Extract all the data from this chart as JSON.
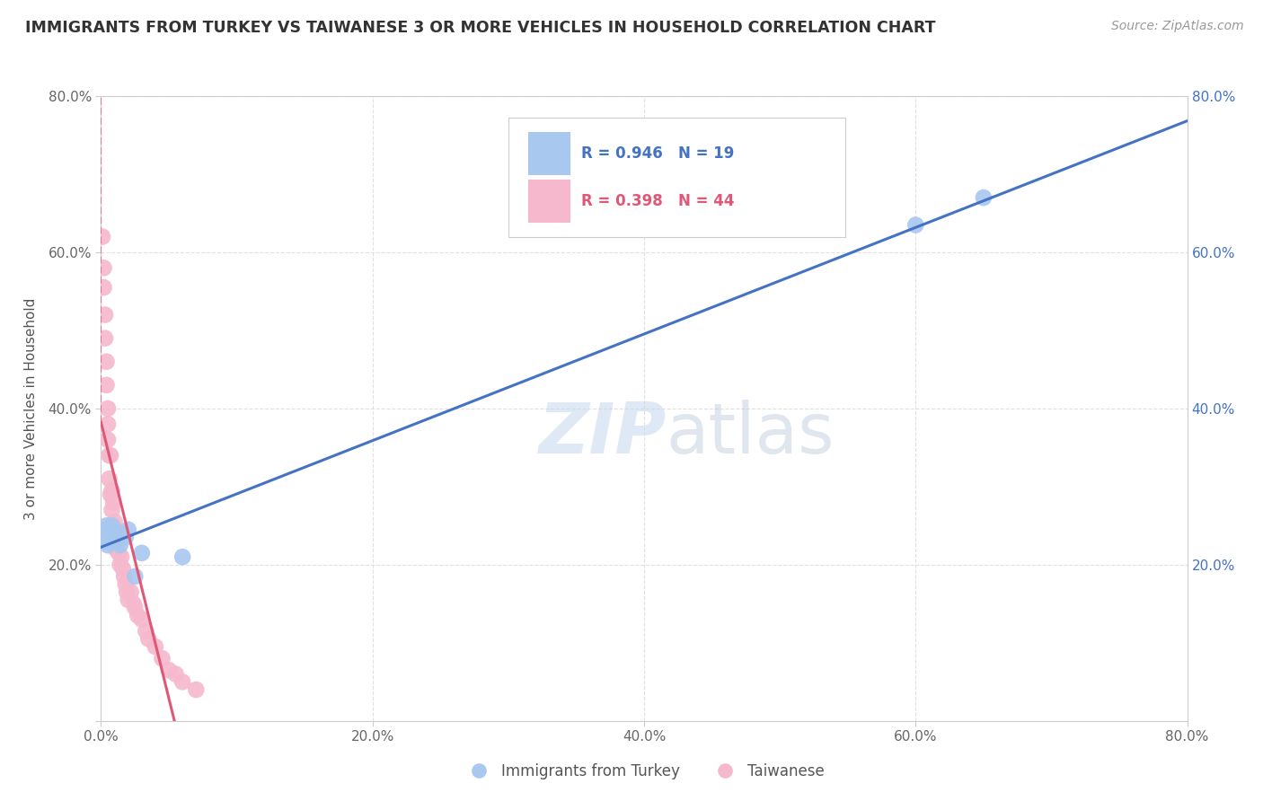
{
  "title": "IMMIGRANTS FROM TURKEY VS TAIWANESE 3 OR MORE VEHICLES IN HOUSEHOLD CORRELATION CHART",
  "source": "Source: ZipAtlas.com",
  "ylabel": "3 or more Vehicles in Household",
  "xlim": [
    0.0,
    0.8
  ],
  "ylim": [
    0.0,
    0.8
  ],
  "xtick_labels": [
    "0.0%",
    "20.0%",
    "40.0%",
    "60.0%",
    "80.0%"
  ],
  "xtick_vals": [
    0.0,
    0.2,
    0.4,
    0.6,
    0.8
  ],
  "ytick_labels": [
    "",
    "20.0%",
    "40.0%",
    "60.0%",
    "80.0%"
  ],
  "ytick_vals": [
    0.0,
    0.2,
    0.4,
    0.6,
    0.8
  ],
  "right_ytick_labels": [
    "",
    "20.0%",
    "40.0%",
    "60.0%",
    "80.0%"
  ],
  "blue_r": 0.946,
  "blue_n": 19,
  "pink_r": 0.398,
  "pink_n": 44,
  "blue_color": "#A8C8F0",
  "pink_color": "#F5B8CC",
  "blue_line_color": "#4472C4",
  "pink_line_color": "#E05878",
  "blue_scatter_x": [
    0.002,
    0.003,
    0.004,
    0.005,
    0.006,
    0.007,
    0.008,
    0.009,
    0.01,
    0.012,
    0.014,
    0.016,
    0.018,
    0.02,
    0.025,
    0.03,
    0.06,
    0.6,
    0.65
  ],
  "blue_scatter_y": [
    0.245,
    0.23,
    0.25,
    0.225,
    0.24,
    0.235,
    0.25,
    0.245,
    0.24,
    0.23,
    0.225,
    0.24,
    0.235,
    0.245,
    0.185,
    0.215,
    0.21,
    0.635,
    0.67
  ],
  "pink_scatter_x": [
    0.001,
    0.002,
    0.002,
    0.003,
    0.003,
    0.004,
    0.004,
    0.005,
    0.005,
    0.005,
    0.006,
    0.006,
    0.007,
    0.007,
    0.008,
    0.008,
    0.009,
    0.009,
    0.01,
    0.01,
    0.011,
    0.011,
    0.012,
    0.013,
    0.014,
    0.015,
    0.016,
    0.017,
    0.018,
    0.019,
    0.02,
    0.022,
    0.024,
    0.025,
    0.027,
    0.03,
    0.033,
    0.035,
    0.04,
    0.045,
    0.05,
    0.055,
    0.06,
    0.07
  ],
  "pink_scatter_y": [
    0.62,
    0.58,
    0.555,
    0.52,
    0.49,
    0.46,
    0.43,
    0.4,
    0.36,
    0.38,
    0.34,
    0.31,
    0.29,
    0.34,
    0.295,
    0.27,
    0.25,
    0.28,
    0.255,
    0.235,
    0.245,
    0.22,
    0.23,
    0.215,
    0.2,
    0.21,
    0.195,
    0.185,
    0.175,
    0.165,
    0.155,
    0.165,
    0.15,
    0.145,
    0.135,
    0.13,
    0.115,
    0.105,
    0.095,
    0.08,
    0.065,
    0.06,
    0.05,
    0.04
  ],
  "watermark_zip": "ZIP",
  "watermark_atlas": "atlas",
  "background_color": "#FFFFFF",
  "legend_blue_label": "Immigrants from Turkey",
  "legend_pink_label": "Taiwanese",
  "grid_color": "#DDDDDD",
  "spine_color": "#CCCCCC"
}
